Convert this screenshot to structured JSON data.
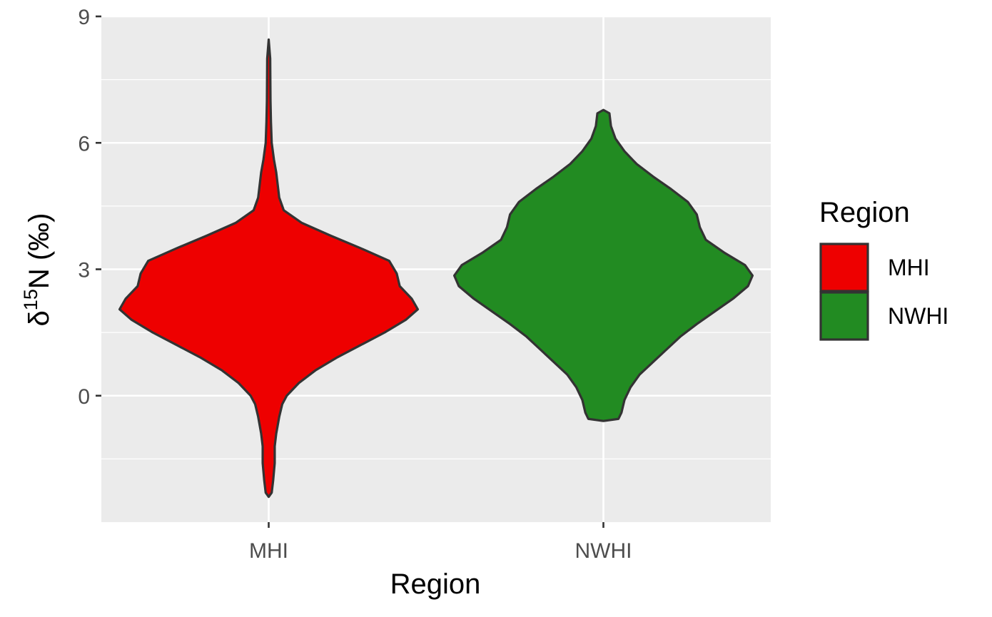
{
  "chart_data": {
    "type": "violin",
    "xlabel": "Region",
    "ylabel_delta": "δ",
    "ylabel_sup": "15",
    "ylabel_rest": "N (‰)",
    "ylim": [
      -3.0,
      9.0
    ],
    "y_ticks": [
      0,
      3,
      6,
      9
    ],
    "y_tick_labels": [
      "0",
      "3",
      "6",
      "9"
    ],
    "y_minor_grid": [
      -1.5,
      1.5,
      4.5,
      7.5
    ],
    "categories": [
      "MHI",
      "NWHI"
    ],
    "series": [
      {
        "name": "MHI",
        "color": "#ee0000",
        "profile": [
          [
            -2.4,
            0.0
          ],
          [
            -2.3,
            0.02
          ],
          [
            -2.0,
            0.03
          ],
          [
            -1.6,
            0.04
          ],
          [
            -1.2,
            0.04
          ],
          [
            -0.9,
            0.05
          ],
          [
            -0.5,
            0.07
          ],
          [
            -0.2,
            0.09
          ],
          [
            0.0,
            0.12
          ],
          [
            0.3,
            0.2
          ],
          [
            0.6,
            0.31
          ],
          [
            0.9,
            0.45
          ],
          [
            1.2,
            0.61
          ],
          [
            1.5,
            0.77
          ],
          [
            1.8,
            0.91
          ],
          [
            2.05,
            0.99
          ],
          [
            2.3,
            0.95
          ],
          [
            2.6,
            0.87
          ],
          [
            2.9,
            0.85
          ],
          [
            3.2,
            0.8
          ],
          [
            3.5,
            0.61
          ],
          [
            3.8,
            0.41
          ],
          [
            4.1,
            0.22
          ],
          [
            4.4,
            0.1
          ],
          [
            4.7,
            0.07
          ],
          [
            5.0,
            0.06
          ],
          [
            5.3,
            0.05
          ],
          [
            5.6,
            0.035
          ],
          [
            6.0,
            0.02
          ],
          [
            6.5,
            0.015
          ],
          [
            7.0,
            0.012
          ],
          [
            8.0,
            0.01
          ],
          [
            8.45,
            0.0
          ]
        ]
      },
      {
        "name": "NWHI",
        "color": "#228b22",
        "profile": [
          [
            -0.6,
            0.0
          ],
          [
            -0.55,
            0.1
          ],
          [
            -0.4,
            0.12
          ],
          [
            -0.1,
            0.14
          ],
          [
            0.2,
            0.18
          ],
          [
            0.5,
            0.24
          ],
          [
            0.8,
            0.33
          ],
          [
            1.1,
            0.42
          ],
          [
            1.4,
            0.51
          ],
          [
            1.7,
            0.62
          ],
          [
            2.0,
            0.74
          ],
          [
            2.3,
            0.86
          ],
          [
            2.6,
            0.96
          ],
          [
            2.85,
            0.99
          ],
          [
            3.1,
            0.94
          ],
          [
            3.4,
            0.8
          ],
          [
            3.7,
            0.68
          ],
          [
            4.0,
            0.64
          ],
          [
            4.3,
            0.62
          ],
          [
            4.6,
            0.56
          ],
          [
            4.9,
            0.45
          ],
          [
            5.2,
            0.33
          ],
          [
            5.5,
            0.22
          ],
          [
            5.8,
            0.14
          ],
          [
            6.1,
            0.08
          ],
          [
            6.4,
            0.05
          ],
          [
            6.7,
            0.04
          ],
          [
            6.78,
            0.0
          ]
        ]
      }
    ],
    "legend": {
      "title": "Region",
      "placement": "right",
      "items": [
        "MHI",
        "NWHI"
      ]
    },
    "panel_background": "#ebebeb",
    "grid": true,
    "outline_color": "#333333"
  }
}
